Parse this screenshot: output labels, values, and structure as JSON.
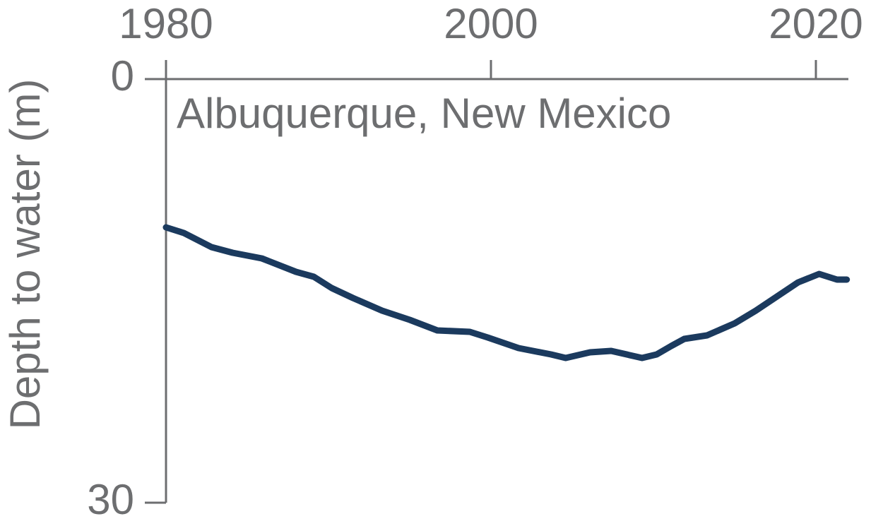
{
  "chart_data": {
    "type": "line",
    "annotation": "Albuquerque, New Mexico",
    "y_label": "Depth to water (m)",
    "x": [
      1980,
      1981.1,
      1982.8,
      1984.1,
      1985.9,
      1988.0,
      1989.1,
      1990.2,
      1991.5,
      1993.3,
      1995.0,
      1996.7,
      1998.7,
      1999.8,
      2001.7,
      2003.7,
      2004.6,
      2006.1,
      2007.4,
      2009.3,
      2010.2,
      2011.1,
      2011.9,
      2013.3,
      2015.0,
      2016.3,
      2017.6,
      2018.9,
      2020.2,
      2021.3,
      2021.9
    ],
    "values": [
      10.5,
      10.9,
      11.9,
      12.3,
      12.7,
      13.65,
      14.0,
      14.8,
      15.5,
      16.4,
      17.05,
      17.8,
      17.9,
      18.3,
      19.05,
      19.5,
      19.75,
      19.35,
      19.25,
      19.75,
      19.5,
      18.9,
      18.4,
      18.15,
      17.3,
      16.4,
      15.4,
      14.4,
      13.8,
      14.2,
      14.2
    ],
    "color": "#1b3a5e",
    "xlim": [
      1980,
      2022
    ],
    "xticks": [
      1980,
      2000,
      2020
    ],
    "ylim": [
      0,
      30
    ],
    "yticks": [
      0,
      30
    ],
    "y_inverted": true
  }
}
